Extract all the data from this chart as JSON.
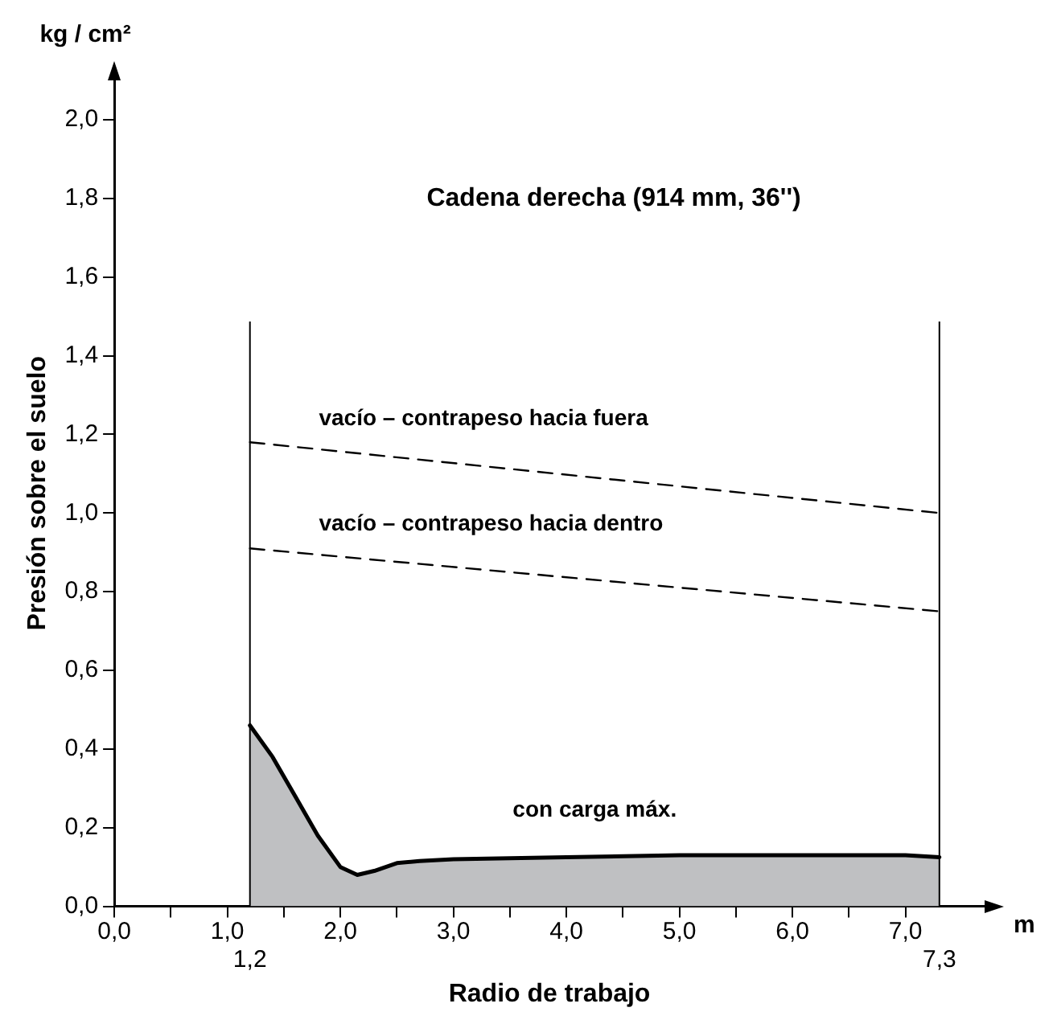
{
  "chart_data": {
    "type": "line",
    "title": "Cadena derecha (914 mm, 36'')",
    "xlabel": "Radio de trabajo",
    "ylabel": "Presión sobre el suelo",
    "annotations": [
      "kg / cm²",
      "m"
    ],
    "xlim": [
      0,
      7.7
    ],
    "xticks": [
      {
        "value": 0,
        "label": "0,0"
      },
      {
        "value": 0.5,
        "label": null
      },
      {
        "value": 1,
        "label": "1,0"
      },
      {
        "value": 1.5,
        "label": null
      },
      {
        "value": 2,
        "label": "2,0"
      },
      {
        "value": 2.5,
        "label": null
      },
      {
        "value": 3,
        "label": "3,0"
      },
      {
        "value": 3.5,
        "label": null
      },
      {
        "value": 4,
        "label": "4,0"
      },
      {
        "value": 4.5,
        "label": null
      },
      {
        "value": 5,
        "label": "5,0"
      },
      {
        "value": 5.5,
        "label": null
      },
      {
        "value": 6,
        "label": "6,0"
      },
      {
        "value": 6.5,
        "label": null
      },
      {
        "value": 7,
        "label": "7,0"
      }
    ],
    "ylim": [
      0,
      2.1
    ],
    "yticks": [
      {
        "value": 0,
        "label": "0,0"
      },
      {
        "value": 0.2,
        "label": "0,2"
      },
      {
        "value": 0.4,
        "label": "0,4"
      },
      {
        "value": 0.6,
        "label": "0,6"
      },
      {
        "value": 0.8,
        "label": "0,8"
      },
      {
        "value": 1,
        "label": "1,0"
      },
      {
        "value": 1.2,
        "label": "1,2"
      },
      {
        "value": 1.4,
        "label": "1,4"
      },
      {
        "value": 1.6,
        "label": "1,6"
      },
      {
        "value": 1.8,
        "label": "1,8"
      },
      {
        "value": 2,
        "label": "2,0"
      }
    ],
    "grid": false,
    "legend": false,
    "marker": "none",
    "ref_lines": [
      {
        "axis": "x",
        "value": 1.2,
        "label": "1,2",
        "color": "#000000"
      },
      {
        "axis": "x",
        "value": 7.3,
        "label": "7,3",
        "color": "#000000"
      }
    ],
    "series": [
      {
        "name": "vacío – contrapeso hacia fuera",
        "color": "#000000",
        "line_style": "dashed",
        "x": [
          1.2,
          7.3
        ],
        "values": [
          1.18,
          1.0
        ]
      },
      {
        "name": "vacío – contrapeso hacia dentro",
        "color": "#000000",
        "line_style": "dashed",
        "x": [
          1.2,
          7.3
        ],
        "values": [
          0.91,
          0.75
        ]
      },
      {
        "name": "con carga máx.",
        "type": "area",
        "color": "#000000",
        "line_style": "solid",
        "x": [
          1.2,
          1.4,
          1.6,
          1.8,
          2.0,
          2.15,
          2.3,
          2.5,
          2.7,
          3.0,
          4.0,
          5.0,
          6.0,
          7.0,
          7.3
        ],
        "values": [
          0.46,
          0.38,
          0.28,
          0.18,
          0.1,
          0.08,
          0.09,
          0.11,
          0.115,
          0.12,
          0.125,
          0.13,
          0.13,
          0.13,
          0.125
        ]
      }
    ]
  }
}
